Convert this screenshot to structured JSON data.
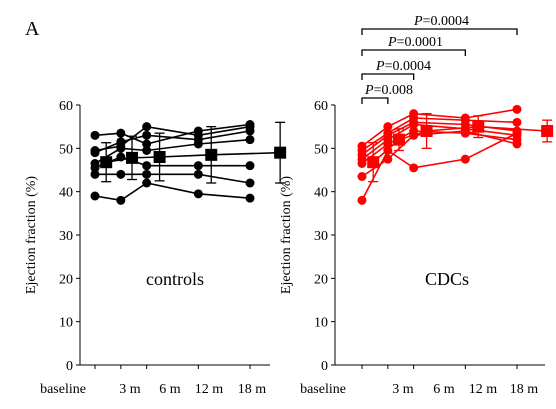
{
  "figure": {
    "panel_label": "A"
  },
  "chart_data": [
    {
      "type": "line",
      "id": "controls",
      "annotation": "controls",
      "ylabel": "Ejection fraction (%)",
      "xlabel": "",
      "ylim": [
        0,
        60
      ],
      "y_ticks": [
        0,
        10,
        20,
        30,
        40,
        50,
        60
      ],
      "x_ticks": [
        {
          "label": "baseline",
          "at": 0
        },
        {
          "label": "3 m",
          "at": 3
        },
        {
          "label": "6 m",
          "at": 6
        },
        {
          "label": "12 m",
          "at": 12
        },
        {
          "label": "18 m",
          "at": 18
        }
      ],
      "color": "#000000",
      "series": [
        {
          "x": [
            0,
            3,
            6,
            12,
            18
          ],
          "values": [
            53.0,
            53.5,
            51.0,
            54.0,
            55.5
          ]
        },
        {
          "x": [
            0,
            3,
            6,
            12,
            18
          ],
          "values": [
            49.5,
            50.5,
            55.0,
            53.0,
            55.0
          ]
        },
        {
          "x": [
            0,
            3,
            6,
            12,
            18
          ],
          "values": [
            49.0,
            51.5,
            53.0,
            52.0,
            54.0
          ]
        },
        {
          "x": [
            0,
            3,
            6,
            12,
            18
          ],
          "values": [
            46.5,
            50.0,
            49.5,
            51.0,
            52.0
          ]
        },
        {
          "x": [
            0,
            3,
            6,
            12,
            18
          ],
          "values": [
            45.5,
            48.0,
            46.0,
            46.0,
            46.0
          ]
        },
        {
          "x": [
            0,
            3,
            6,
            12,
            18
          ],
          "values": [
            44.0,
            44.0,
            44.0,
            44.0,
            42.0
          ]
        },
        {
          "x": [
            0,
            3,
            6,
            12,
            18
          ],
          "values": [
            39.0,
            38.0,
            42.0,
            39.5,
            38.5
          ]
        }
      ],
      "mean": {
        "x": [
          1.3,
          4.3,
          7.5,
          13.5,
          21.5
        ],
        "values": [
          46.8,
          47.8,
          48.0,
          48.5,
          49.0
        ],
        "err": [
          4.5,
          5.0,
          5.5,
          6.5,
          7.0
        ]
      }
    },
    {
      "type": "line",
      "id": "cdcs",
      "annotation": "CDCs",
      "ylabel": "Ejection fraction (%)",
      "xlabel": "",
      "ylim": [
        0,
        60
      ],
      "y_ticks": [
        0,
        10,
        20,
        30,
        40,
        50,
        60
      ],
      "x_ticks": [
        {
          "label": "baseline",
          "at": 0
        },
        {
          "label": "3 m",
          "at": 3
        },
        {
          "label": "6 m",
          "at": 6
        },
        {
          "label": "12 m",
          "at": 12
        },
        {
          "label": "18 m",
          "at": 18
        }
      ],
      "color": "#ff0000",
      "series": [
        {
          "x": [
            0,
            3,
            6,
            12,
            18
          ],
          "values": [
            50.5,
            55.0,
            58.0,
            57.0,
            59.0
          ]
        },
        {
          "x": [
            0,
            3,
            6,
            12,
            18
          ],
          "values": [
            49.5,
            53.5,
            57.0,
            56.5,
            56.0
          ]
        },
        {
          "x": [
            0,
            3,
            6,
            12,
            18
          ],
          "values": [
            48.5,
            53.0,
            56.0,
            55.5,
            54.0
          ]
        },
        {
          "x": [
            0,
            3,
            6,
            12,
            18
          ],
          "values": [
            47.5,
            52.0,
            55.5,
            54.5,
            53.0
          ]
        },
        {
          "x": [
            0,
            3,
            6,
            12,
            18
          ],
          "values": [
            46.5,
            51.0,
            54.0,
            53.5,
            52.0
          ]
        },
        {
          "x": [
            0,
            3,
            6,
            12,
            18
          ],
          "values": [
            43.5,
            47.5,
            53.0,
            54.0,
            51.0
          ]
        },
        {
          "x": [
            0,
            3,
            6,
            12,
            18
          ],
          "values": [
            38.0,
            49.5,
            45.5,
            47.5,
            53.5
          ]
        }
      ],
      "mean": {
        "x": [
          1.3,
          4.3,
          7.5,
          13.5,
          21.5
        ],
        "values": [
          46.8,
          52.0,
          54.0,
          55.0,
          54.0
        ],
        "err": [
          4.5,
          2.5,
          4.0,
          2.5,
          2.5
        ]
      },
      "significance": [
        {
          "label": "P=0.008",
          "from": 0,
          "to": 3
        },
        {
          "label": "P=0.0004",
          "from": 0,
          "to": 6
        },
        {
          "label": "P=0.0001",
          "from": 0,
          "to": 12
        },
        {
          "label": "P=0.0004",
          "from": 0,
          "to": 18
        }
      ]
    }
  ]
}
